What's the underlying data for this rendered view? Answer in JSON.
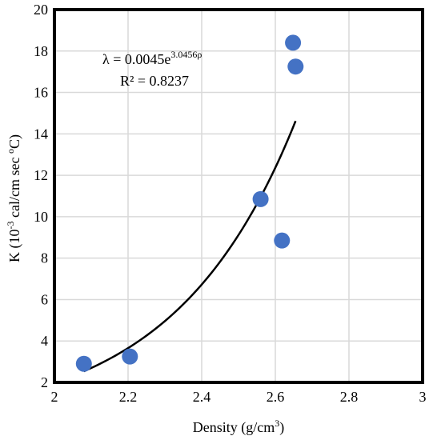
{
  "chart_data": {
    "type": "scatter",
    "title": "",
    "xlabel": {
      "text": "Density (g/cm",
      "sup": "3",
      "after": ")"
    },
    "ylabel": {
      "before": "K (10",
      "sup": "-3",
      "middle": " cal/cm sec ",
      "sup2": "o",
      "after": "C)"
    },
    "xlim": [
      2,
      3
    ],
    "ylim": [
      2,
      20
    ],
    "xticks": [
      2,
      2.2,
      2.4,
      2.6,
      2.8,
      3
    ],
    "xtick_labels": [
      "2",
      "2.2",
      "2.4",
      "2.6",
      "2.8",
      "3"
    ],
    "yticks": [
      2,
      4,
      6,
      8,
      10,
      12,
      14,
      16,
      18,
      20
    ],
    "ytick_labels": [
      "2",
      "4",
      "6",
      "8",
      "10",
      "12",
      "14",
      "16",
      "18",
      "20"
    ],
    "grid": true,
    "points": [
      {
        "x": 2.08,
        "y": 2.9
      },
      {
        "x": 2.205,
        "y": 3.25
      },
      {
        "x": 2.56,
        "y": 10.85
      },
      {
        "x": 2.618,
        "y": 8.85
      },
      {
        "x": 2.648,
        "y": 18.4
      },
      {
        "x": 2.655,
        "y": 17.25
      }
    ],
    "trendline": {
      "type": "exponential",
      "a": 0.0045,
      "b": 3.0456,
      "x_range": [
        2.08,
        2.655
      ]
    },
    "annotation": {
      "equation_prefix": "λ = 0.0045e",
      "equation_exponent": "3.0456ρ",
      "r2": "R² = 0.8237"
    },
    "colors": {
      "marker": "#4472c4",
      "trendline": "#000000",
      "grid": "#d9d9d9",
      "frame": "#000000"
    }
  }
}
